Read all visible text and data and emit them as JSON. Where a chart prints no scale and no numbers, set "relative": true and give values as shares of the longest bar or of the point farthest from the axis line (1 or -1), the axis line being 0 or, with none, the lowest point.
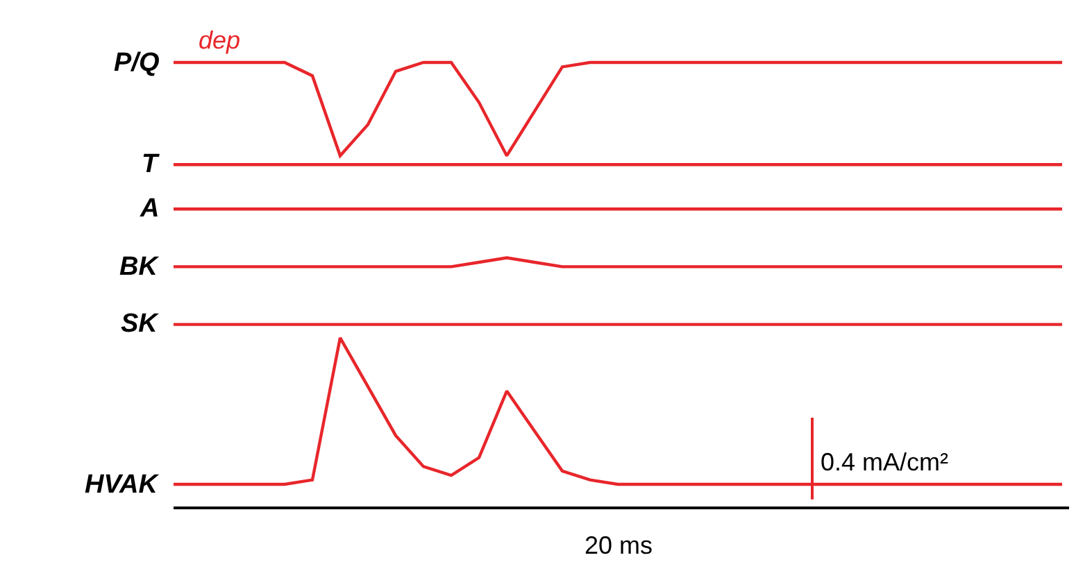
{
  "chart_data": {
    "type": "line",
    "relative": true,
    "legend": false,
    "marker": "none",
    "line_style": "solid",
    "categories": [
      null,
      null,
      null,
      null,
      null,
      null,
      null,
      null,
      null,
      null,
      null,
      null,
      null,
      null,
      null,
      null,
      null,
      null,
      null,
      null,
      null,
      null,
      null,
      null,
      null,
      null,
      null,
      null,
      null,
      null,
      null,
      null,
      null
    ],
    "series": [
      {
        "name": "P/Q",
        "color": "#e8262b",
        "values": [
          1.0,
          1.0,
          1.0,
          1.0,
          1.0,
          0.97,
          0.79,
          0.86,
          0.98,
          1.0,
          1.0,
          0.91,
          0.79,
          0.89,
          0.99,
          1.0,
          1.0,
          1.0,
          1.0,
          1.0,
          1.0,
          1.0,
          1.0,
          1.0,
          1.0,
          1.0,
          1.0,
          1.0,
          1.0,
          1.0,
          1.0,
          1.0,
          1.0
        ]
      },
      {
        "name": "T",
        "color": "#e8262b",
        "values": [
          0.77,
          0.77,
          0.77,
          0.77,
          0.77,
          0.77,
          0.77,
          0.77,
          0.77,
          0.77,
          0.77,
          0.77,
          0.77,
          0.77,
          0.77,
          0.77,
          0.77,
          0.77,
          0.77,
          0.77,
          0.77,
          0.77,
          0.77,
          0.77,
          0.77,
          0.77,
          0.77,
          0.77,
          0.77,
          0.77,
          0.77,
          0.77,
          0.77
        ]
      },
      {
        "name": "A",
        "color": "#e8262b",
        "values": [
          0.67,
          0.67,
          0.67,
          0.67,
          0.67,
          0.67,
          0.67,
          0.67,
          0.67,
          0.67,
          0.67,
          0.67,
          0.67,
          0.67,
          0.67,
          0.67,
          0.67,
          0.67,
          0.67,
          0.67,
          0.67,
          0.67,
          0.67,
          0.67,
          0.67,
          0.67,
          0.67,
          0.67,
          0.67,
          0.67,
          0.67,
          0.67,
          0.67
        ]
      },
      {
        "name": "BK",
        "color": "#e8262b",
        "values": [
          0.54,
          0.54,
          0.54,
          0.54,
          0.54,
          0.54,
          0.54,
          0.54,
          0.54,
          0.54,
          0.54,
          0.55,
          0.56,
          0.55,
          0.54,
          0.54,
          0.54,
          0.54,
          0.54,
          0.54,
          0.54,
          0.54,
          0.54,
          0.54,
          0.54,
          0.54,
          0.54,
          0.54,
          0.54,
          0.54,
          0.54,
          0.54,
          0.54
        ]
      },
      {
        "name": "SK",
        "color": "#e8262b",
        "values": [
          0.41,
          0.41,
          0.41,
          0.41,
          0.41,
          0.41,
          0.41,
          0.41,
          0.41,
          0.41,
          0.41,
          0.41,
          0.41,
          0.41,
          0.41,
          0.41,
          0.41,
          0.41,
          0.41,
          0.41,
          0.41,
          0.41,
          0.41,
          0.41,
          0.41,
          0.41,
          0.41,
          0.41,
          0.41,
          0.41,
          0.41,
          0.41,
          0.41
        ]
      },
      {
        "name": "HVAK",
        "color": "#e8262b",
        "values": [
          0.05,
          0.05,
          0.05,
          0.05,
          0.05,
          0.06,
          0.38,
          0.27,
          0.16,
          0.09,
          0.07,
          0.11,
          0.26,
          0.17,
          0.08,
          0.06,
          0.05,
          0.05,
          0.05,
          0.05,
          0.05,
          0.05,
          0.05,
          0.05,
          0.05,
          0.05,
          0.05,
          0.05,
          0.05,
          0.05,
          0.05,
          0.05,
          0.05
        ]
      }
    ],
    "annotations": [
      "dep",
      "0.4 mA/cm²",
      "20 ms"
    ]
  }
}
